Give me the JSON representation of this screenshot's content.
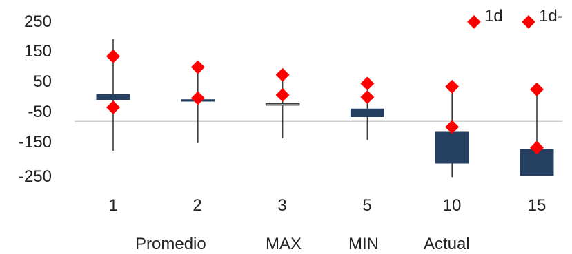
{
  "chart_data": {
    "type": "candlestick",
    "title": "",
    "xlabel": "",
    "ylabel": "",
    "ylim": [
      -250,
      250
    ],
    "y_ticks": [
      "250",
      "150",
      "50",
      "-50",
      "-150",
      "-250"
    ],
    "y_tick_values": [
      250,
      150,
      50,
      -50,
      -150,
      -250
    ],
    "categories": [
      "1",
      "2",
      "3",
      "5",
      "10",
      "15"
    ],
    "baseline": -75,
    "series": [
      {
        "name": "Promedio",
        "values": [
          12,
          -5,
          -18,
          -35,
          -110,
          -165
        ]
      },
      {
        "name": "Actual",
        "values": [
          -5,
          -10,
          -18,
          -60,
          -210,
          -250
        ]
      },
      {
        "name": "MAX",
        "values": [
          190,
          120,
          80,
          60,
          40,
          30
        ]
      },
      {
        "name": "MIN",
        "values": [
          -170,
          -145,
          -130,
          -135,
          -255,
          -250
        ]
      },
      {
        "name": "1d",
        "values": [
          135,
          100,
          75,
          47,
          37,
          28
        ]
      },
      {
        "name": "1d-",
        "values": [
          -30,
          0,
          10,
          3,
          -93,
          -160
        ]
      }
    ],
    "legend": [
      "1d",
      "1d-"
    ],
    "legend_position": "top-right",
    "bottom_labels": [
      "Promedio",
      "MAX",
      "MIN",
      "Actual"
    ],
    "colors": {
      "marker": "#ff0000",
      "bar_down": "#243f60",
      "bar_up_fill": "#ffffff",
      "bar_edge": "#3b3b3b",
      "whisker": "#3b3b3b",
      "axis": "#d0d0d0"
    }
  }
}
